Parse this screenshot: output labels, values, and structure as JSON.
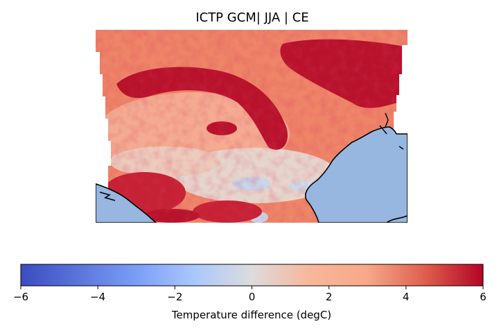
{
  "title": "ICTP GCM| JJA | CE",
  "colorbar": {
    "label": "Temperature difference (degC)",
    "ticks": [
      "−6",
      "−4",
      "−2",
      "0",
      "2",
      "4",
      "6"
    ],
    "min": -6,
    "max": 6,
    "colormap": "coolwarm",
    "colors": {
      "neg_max": "#3b4cc0",
      "neg_mid": "#aac7fd",
      "zero": "#dddcdc",
      "pos_mid": "#f7a889",
      "pos_max": "#b40426"
    }
  },
  "map": {
    "ocean_color": "#97b6e0",
    "coastline_color": "#000000"
  }
}
